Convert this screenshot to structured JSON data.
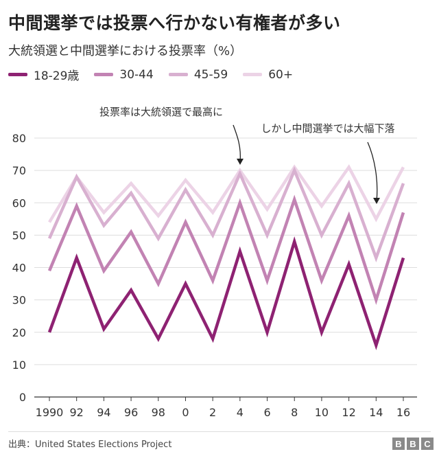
{
  "title": "中間選挙では投票へ行かない有権者が多い",
  "subtitle": "大統領選と中間選挙における投票率（%）",
  "legend": [
    {
      "label": "18-29歳",
      "color": "#8e2272"
    },
    {
      "label": "30-44",
      "color": "#c283b3"
    },
    {
      "label": "45-59",
      "color": "#d8b0d0"
    },
    {
      "label": "60+",
      "color": "#ecd3e6"
    }
  ],
  "annotations": {
    "left": "投票率は大統領選で最高に",
    "right": "しかし中間選挙では大幅下落"
  },
  "source": "出典：United States Elections Project",
  "brand": [
    "B",
    "B",
    "C"
  ],
  "chart_data": {
    "type": "line",
    "x_tick_labels": [
      "1990",
      "92",
      "94",
      "96",
      "98",
      "0",
      "2",
      "4",
      "6",
      "8",
      "10",
      "12",
      "14",
      "16"
    ],
    "x": [
      1990,
      1992,
      1994,
      1996,
      1998,
      2000,
      2002,
      2004,
      2006,
      2008,
      2010,
      2012,
      2014,
      2016
    ],
    "ylim": [
      0,
      80
    ],
    "yticks": [
      0,
      10,
      20,
      30,
      40,
      50,
      60,
      70,
      80
    ],
    "grid": true,
    "series": [
      {
        "name": "60+",
        "color": "#ecd3e6",
        "values": [
          54,
          68,
          57,
          66,
          56,
          67,
          57,
          70,
          58,
          71,
          59,
          71,
          55,
          71
        ]
      },
      {
        "name": "45-59",
        "color": "#d8b0d0",
        "values": [
          49,
          68,
          53,
          63,
          49,
          64,
          50,
          69,
          50,
          70,
          50,
          66,
          43,
          66
        ]
      },
      {
        "name": "30-44",
        "color": "#c283b3",
        "values": [
          39,
          59,
          39,
          51,
          35,
          54,
          36,
          60,
          36,
          61,
          36,
          56,
          30,
          57
        ]
      },
      {
        "name": "18-29歳",
        "color": "#8e2272",
        "values": [
          20,
          43,
          21,
          33,
          18,
          35,
          18,
          45,
          20,
          48,
          20,
          41,
          16,
          43
        ]
      }
    ]
  }
}
